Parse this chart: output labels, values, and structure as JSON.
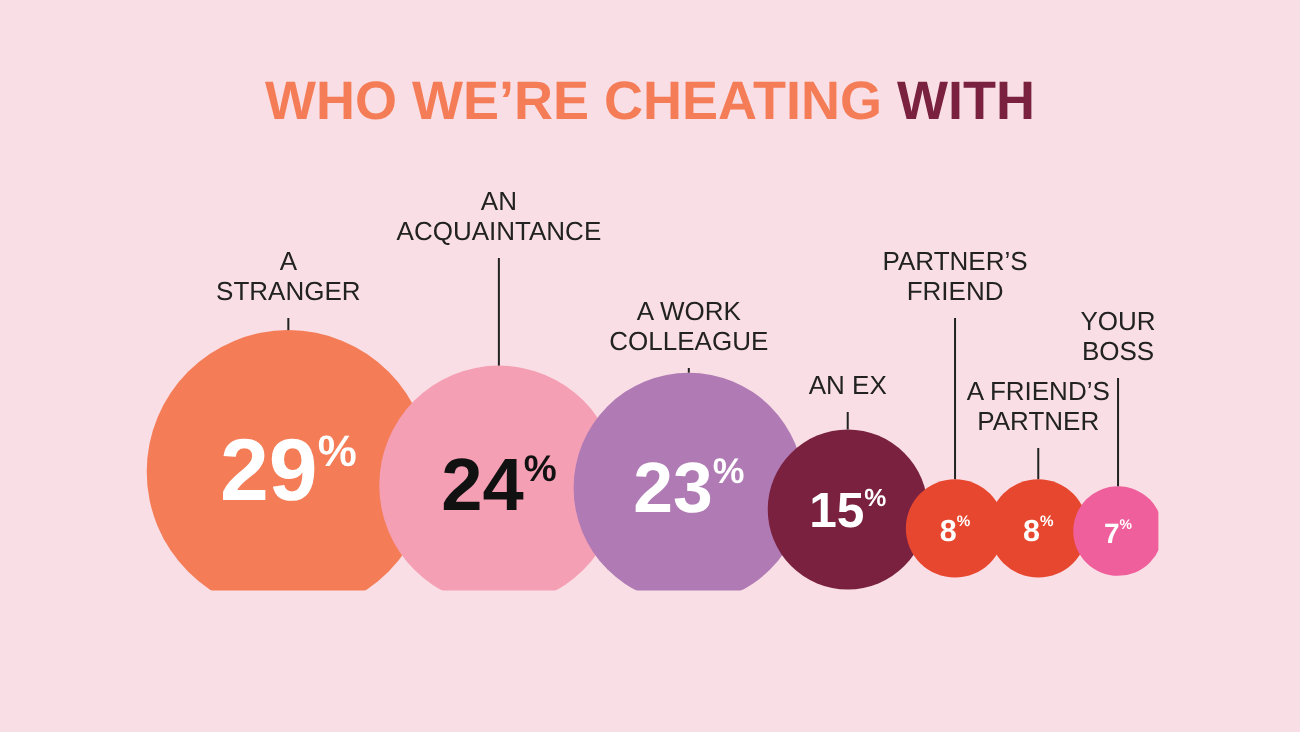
{
  "chart_data": {
    "type": "other",
    "title": "WHO WE’RE CHEATING WITH",
    "categories": [
      "A STRANGER",
      "AN ACQUAINTANCE",
      "A WORK COLLEAGUE",
      "AN EX",
      "PARTNER’S FRIEND",
      "A FRIEND’S PARTNER",
      "YOUR BOSS"
    ],
    "values": [
      29,
      24,
      23,
      15,
      8,
      8,
      7
    ],
    "value_labels": [
      "29%",
      "24%",
      "23%",
      "15%",
      "8%",
      "8%",
      "7%"
    ],
    "colors": [
      "#f47c57",
      "#f59fb5",
      "#b07bb4",
      "#7a2140",
      "#e8472f",
      "#e8472f",
      "#ef5f9c"
    ]
  }
}
